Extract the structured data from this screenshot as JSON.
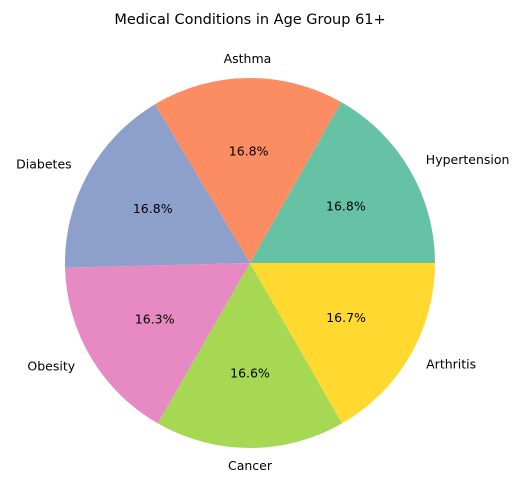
{
  "chart_data": {
    "type": "pie",
    "title": "Medical Conditions in Age Group 61+",
    "slices": [
      {
        "label": "Hypertension",
        "value": 16.8,
        "pct_label": "16.8%",
        "color": "#66c2a5"
      },
      {
        "label": "Asthma",
        "value": 16.8,
        "pct_label": "16.8%",
        "color": "#fc8d62"
      },
      {
        "label": "Diabetes",
        "value": 16.8,
        "pct_label": "16.8%",
        "color": "#8da0cb"
      },
      {
        "label": "Obesity",
        "value": 16.3,
        "pct_label": "16.3%",
        "color": "#e78ac3"
      },
      {
        "label": "Cancer",
        "value": 16.6,
        "pct_label": "16.6%",
        "color": "#a6d854"
      },
      {
        "label": "Arthritis",
        "value": 16.7,
        "pct_label": "16.7%",
        "color": "#ffd92f"
      }
    ],
    "start_angle_deg": 0,
    "direction": "counterclockwise",
    "legend": "none"
  }
}
